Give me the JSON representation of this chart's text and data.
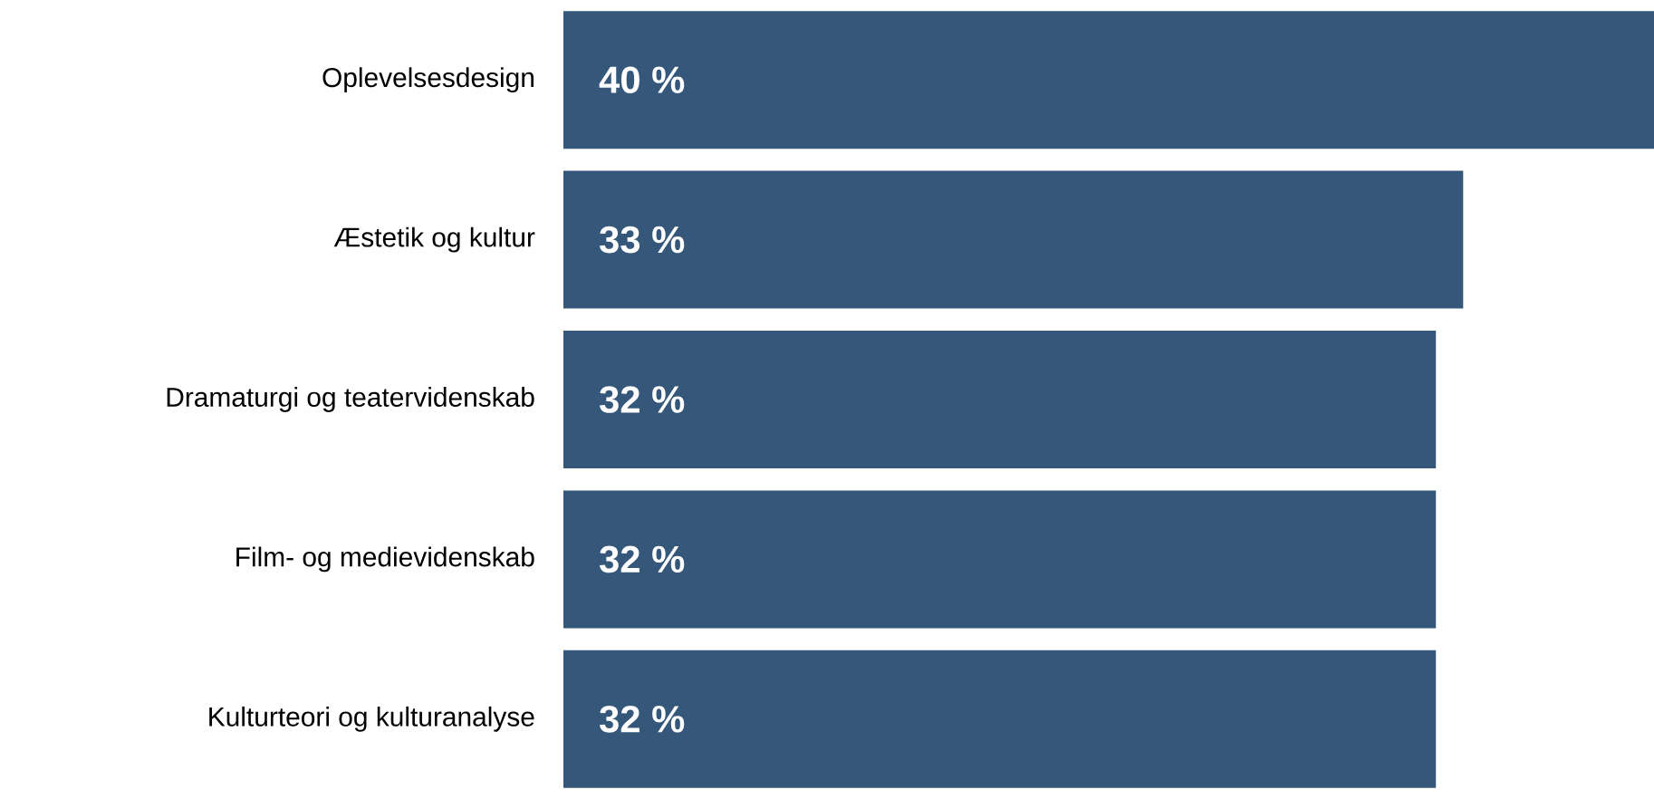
{
  "chart_data": {
    "type": "bar",
    "orientation": "horizontal",
    "categories": [
      "Oplevelsesdesign",
      "Æstetik og kultur",
      "Dramaturgi og teatervidenskab",
      "Film- og medievidenskab",
      "Kulturteori og kulturanalyse"
    ],
    "values": [
      40,
      33,
      32,
      32,
      32
    ],
    "value_labels": [
      "40 %",
      "33 %",
      "32 %",
      "32 %",
      "32 %"
    ],
    "color": "#35577a",
    "xlim": [
      0,
      40
    ]
  }
}
